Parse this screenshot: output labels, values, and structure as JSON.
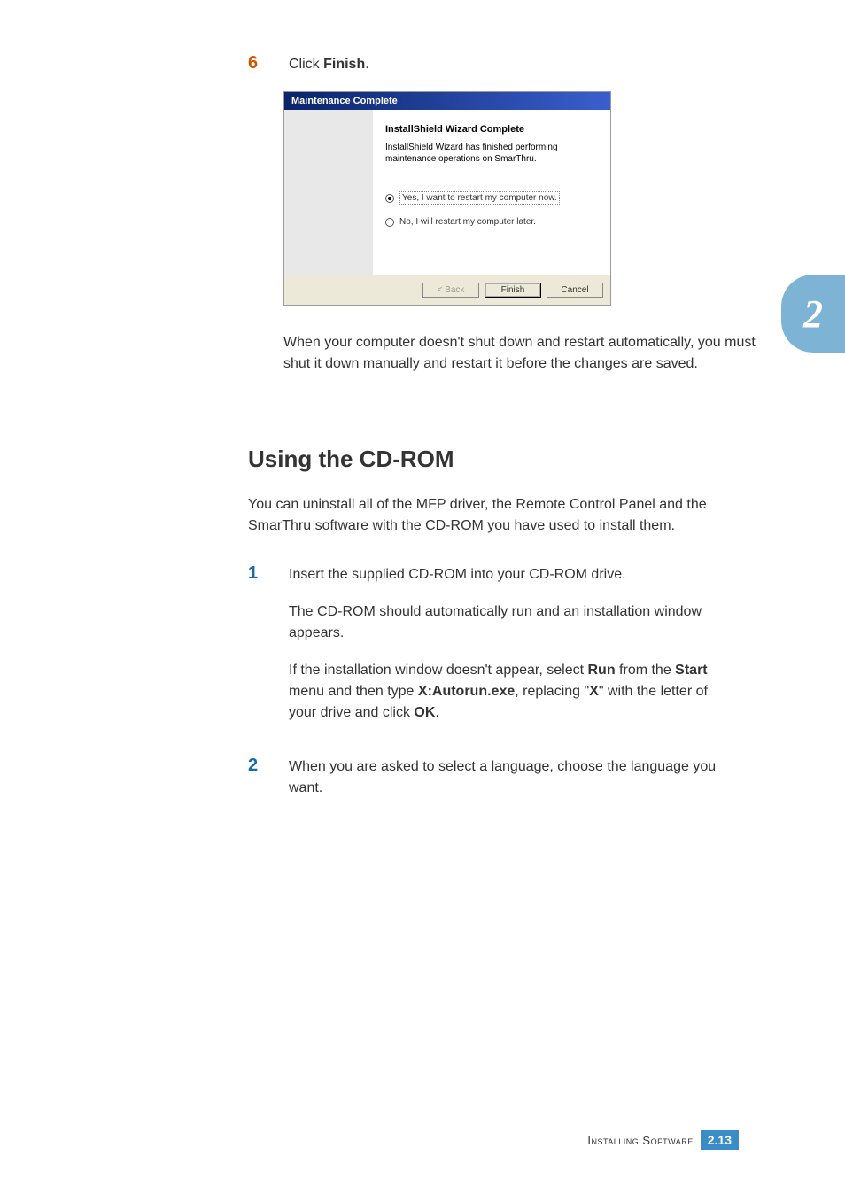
{
  "step6": {
    "number": "6",
    "prefix": "Click ",
    "bold": "Finish",
    "suffix": "."
  },
  "dialog": {
    "title": "Maintenance Complete",
    "heading": "InstallShield Wizard Complete",
    "body": "InstallShield Wizard has finished performing maintenance operations on SmarThru.",
    "radio1": "Yes, I want to restart my computer now.",
    "radio2": "No, I will restart my computer later.",
    "btn_back": "< Back",
    "btn_finish": "Finish",
    "btn_cancel": "Cancel"
  },
  "followup_paragraph": "When your computer doesn't shut down and restart automatically, you must shut it down manually and restart it before the changes are saved.",
  "section_heading": "Using the CD-ROM",
  "intro_paragraph": "You can uninstall all of the MFP driver, the Remote Control Panel and the SmarThru software with the CD-ROM you have used to install them.",
  "step1": {
    "number": "1",
    "line1": "Insert the supplied CD-ROM into your CD-ROM drive.",
    "line2": "The CD-ROM should automatically run and an installation window appears.",
    "p3_1": "If the installation window doesn't appear, select ",
    "p3_run": "Run",
    "p3_2": " from the ",
    "p3_start": "Start",
    "p3_3": " menu and then type ",
    "p3_auto": "X:Autorun.exe",
    "p3_4": ", replacing \"",
    "p3_x": "X",
    "p3_5": "\" with the letter of your drive and click ",
    "p3_ok": "OK",
    "p3_6": "."
  },
  "step2": {
    "number": "2",
    "text": "When you are asked to select a language, choose the language you want."
  },
  "chapter_tab": "2",
  "footer": {
    "label": "Installing Software",
    "chapter": "2",
    "dot": ".",
    "page": "13"
  }
}
